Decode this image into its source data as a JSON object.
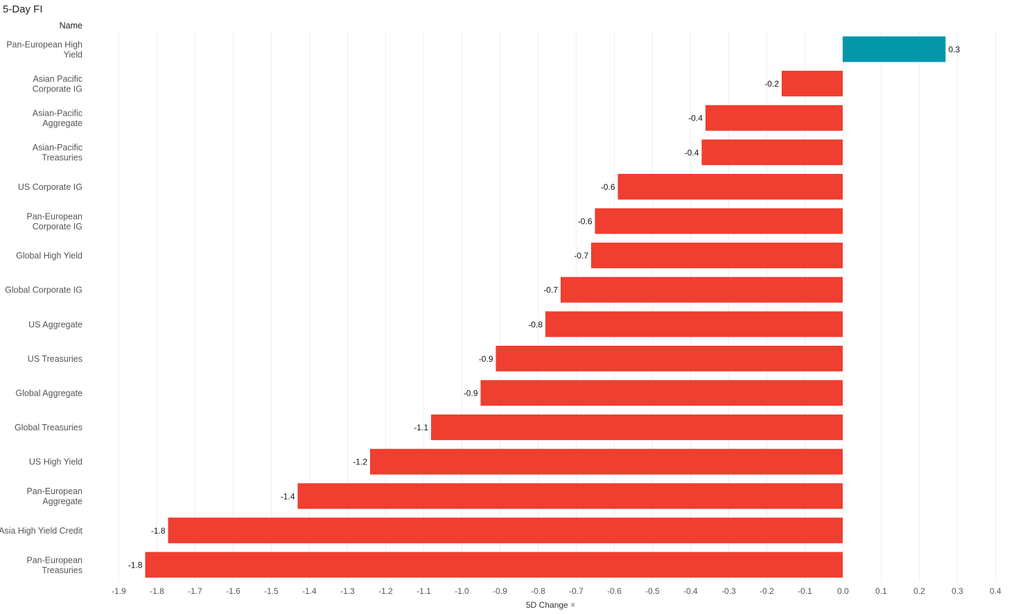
{
  "title": "5-Day FI",
  "row_header": "Name",
  "axis_title": "5D Change",
  "sort_icon": "sort-descending-icon",
  "colors": {
    "positive": "#0497a9",
    "negative": "#f03e30",
    "grid": "#eeeeee"
  },
  "chart_data": {
    "type": "bar",
    "orientation": "horizontal",
    "title": "5-Day FI",
    "xlabel": "5D Change",
    "ylabel": "Name",
    "xlim": [
      -1.9,
      0.4
    ],
    "xticks": [
      "-1.9",
      "-1.8",
      "-1.7",
      "-1.6",
      "-1.5",
      "-1.4",
      "-1.3",
      "-1.2",
      "-1.1",
      "-1.0",
      "-0.9",
      "-0.8",
      "-0.7",
      "-0.6",
      "-0.5",
      "-0.4",
      "-0.3",
      "-0.2",
      "-0.1",
      "0.0",
      "0.1",
      "0.2",
      "0.3",
      "0.4"
    ],
    "grid": true,
    "categories": [
      [
        "Pan-European High",
        "Yield"
      ],
      [
        "Asian Pacific",
        "Corporate IG"
      ],
      [
        "Asian-Pacific",
        "Aggregate"
      ],
      [
        "Asian-Pacific",
        "Treasuries"
      ],
      [
        "US Corporate IG"
      ],
      [
        "Pan-European",
        "Corporate IG"
      ],
      [
        "Global High Yield"
      ],
      [
        "Global Corporate IG"
      ],
      [
        "US Aggregate"
      ],
      [
        "US Treasuries"
      ],
      [
        "Global Aggregate"
      ],
      [
        "Global Treasuries"
      ],
      [
        "US High Yield"
      ],
      [
        "Pan-European",
        "Aggregate"
      ],
      [
        "Asia High Yield Credit"
      ],
      [
        "Pan-European",
        "Treasuries"
      ]
    ],
    "values": [
      0.27,
      -0.16,
      -0.36,
      -0.37,
      -0.59,
      -0.65,
      -0.66,
      -0.74,
      -0.78,
      -0.91,
      -0.95,
      -1.08,
      -1.24,
      -1.43,
      -1.77,
      -1.83
    ],
    "value_labels": [
      "0.3",
      "-0.2",
      "-0.4",
      "-0.4",
      "-0.6",
      "-0.6",
      "-0.7",
      "-0.7",
      "-0.8",
      "-0.9",
      "-0.9",
      "-1.1",
      "-1.2",
      "-1.4",
      "-1.8",
      "-1.8"
    ]
  }
}
